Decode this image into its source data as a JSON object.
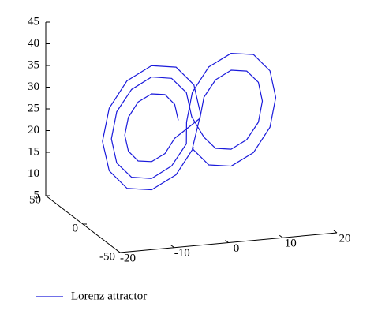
{
  "chart_data": {
    "type": "line3d",
    "series": [
      {
        "name": "Lorenz attractor",
        "color": "#1a1adb",
        "x": [
          -2.5,
          -3.3,
          -5.5,
          -8.5,
          -11.5,
          -13.7,
          -14.5,
          -13.7,
          -11.5,
          -8.5,
          -5.5,
          -3.3,
          1.5,
          2.4,
          5,
          8.5,
          12,
          14.6,
          15.5,
          14.6,
          12,
          8.5,
          5,
          2.4,
          0.5,
          -0.7,
          -4,
          -8.5,
          -13,
          -16.3,
          -17.5,
          -16.3,
          -13,
          -8.5,
          -4,
          -0.7,
          -1.5,
          -0.2,
          3.5,
          8.5,
          13.5,
          17.2,
          18.5,
          17.2,
          13.5,
          8.5,
          3.5,
          -0.2,
          2.5,
          1,
          -3,
          -8.5,
          -14,
          -18,
          -19.5,
          -18,
          -14,
          -8.5,
          -3,
          1
        ],
        "y": [
          -0.7,
          -1.7,
          -4.6,
          -8.5,
          -12.4,
          -15.3,
          -16.3,
          -15.3,
          -12.4,
          -8.5,
          -4.6,
          -1.7,
          -0.6,
          0.6,
          3.9,
          8.5,
          13.1,
          16.4,
          17.6,
          16.4,
          13.1,
          8.5,
          3.9,
          0.6,
          3.2,
          1.6,
          -2.6,
          -8.5,
          -14.4,
          -18.6,
          -20.2,
          -18.6,
          -14.4,
          -8.5,
          -2.6,
          1.6,
          -4.5,
          -2.8,
          2,
          8.5,
          15,
          19.8,
          21.5,
          19.8,
          15,
          8.5,
          2,
          -2.8,
          5.8,
          3.9,
          -1.3,
          -8.5,
          -15.7,
          -20.9,
          -22.8,
          -20.9,
          -15.7,
          -8.5,
          -1.3,
          3.9
        ],
        "z": [
          27,
          30.9,
          33.8,
          34.8,
          33.8,
          30.9,
          27,
          23.1,
          20.2,
          19.2,
          20.2,
          23.1,
          27,
          31.6,
          34.9,
          36.1,
          34.9,
          31.6,
          27,
          22.4,
          19.1,
          17.9,
          19.1,
          22.4,
          27,
          32.9,
          37.1,
          38.7,
          37.1,
          32.9,
          27,
          21.1,
          16.9,
          15.3,
          16.9,
          21.1,
          27,
          33.5,
          38.3,
          40,
          38.3,
          33.5,
          27,
          20.5,
          15.7,
          14,
          15.7,
          20.5,
          27,
          34.2,
          39.4,
          41.3,
          39.4,
          34.2,
          27,
          19.8,
          14.6,
          12.7,
          14.6,
          19.8
        ]
      }
    ],
    "xlim": [
      -20,
      20
    ],
    "ylim": [
      -50,
      50
    ],
    "zlim": [
      5,
      45
    ],
    "xticks": [
      -20,
      -10,
      0,
      10,
      20
    ],
    "yticks": [
      -50,
      0,
      50
    ],
    "zticks": [
      5,
      10,
      15,
      20,
      25,
      30,
      35,
      40,
      45
    ]
  }
}
